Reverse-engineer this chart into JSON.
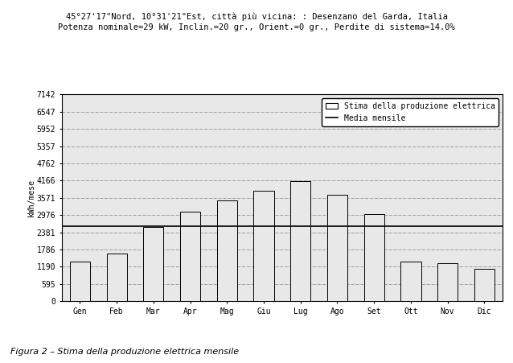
{
  "title_line1": "45°27'17\"Nord, 10°31'21\"Est, città più vicina: : Desenzano del Garda, Italia",
  "title_line2": "Potenza nominale=29 kW, Inclin.=20 gr., Orient.=0 gr., Perdite di sistema=14.0%",
  "months": [
    "Gen",
    "Feb",
    "Mar",
    "Apr",
    "Mag",
    "Giu",
    "Lug",
    "Ago",
    "Set",
    "Ott",
    "Nov",
    "Dic"
  ],
  "values": [
    1380,
    1640,
    2560,
    3100,
    3480,
    3820,
    4150,
    3680,
    3020,
    1380,
    1320,
    1130
  ],
  "yticks": [
    0,
    595,
    1190,
    1786,
    2381,
    2976,
    3571,
    4166,
    4762,
    5357,
    5952,
    6547,
    7142
  ],
  "mean_value": 2600,
  "bar_color": "#e8e8e8",
  "bar_edgecolor": "#000000",
  "mean_line_color": "#000000",
  "outer_bg": "#b0b0b0",
  "inner_bg": "#c0c0c0",
  "plot_bg_color": "#e8e8e8",
  "ylabel": "kWh/mese",
  "legend_label_bar": "Stima della produzione elettrica",
  "legend_label_line": "Media mensile",
  "caption": "Figura 2 – Stima della produzione elettrica mensile",
  "font_family": "monospace",
  "title_fontsize": 7.5,
  "tick_fontsize": 7,
  "bar_width": 0.55
}
